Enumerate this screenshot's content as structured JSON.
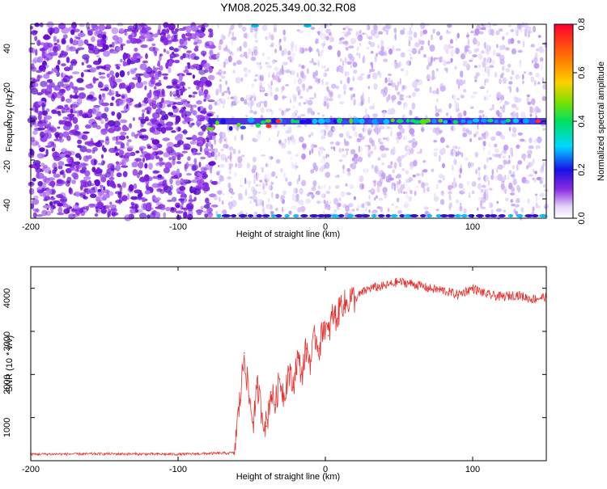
{
  "title": "YM08.2025.349.00.32.R08",
  "chart_data": [
    {
      "type": "heatmap",
      "xlabel": "Height of straight line (km)",
      "ylabel": "Frequency (Hz)",
      "xlim": [
        -200,
        150
      ],
      "ylim": [
        -50,
        50
      ],
      "x_ticks": [
        "-200",
        "-100",
        "0",
        "100"
      ],
      "y_ticks": [
        "40",
        "20",
        "0",
        "-20",
        "-40"
      ],
      "colorbar": {
        "label": "Normalized spectral amplitude",
        "range": [
          0.0,
          0.8
        ],
        "ticks": [
          "0.8",
          "0.6",
          "0.4",
          "0.2",
          "0.0"
        ]
      },
      "features": {
        "noise_transition_km": -75,
        "carrier_line_freq_hz": 0,
        "carrier_line_start_km": -75,
        "edge_band_freq_hz": -50
      }
    },
    {
      "type": "line",
      "xlabel": "Height of straight line (km)",
      "ylabel": "SNR (10 * v/v)",
      "xlim": [
        -200,
        150
      ],
      "ylim": [
        0,
        4500
      ],
      "x_ticks": [
        "-200",
        "-100",
        "0",
        "100"
      ],
      "y_ticks": [
        "4000",
        "3000",
        "2000",
        "1000"
      ],
      "series": [
        {
          "name": "SNR",
          "color": "#e8312e",
          "x": [
            -200,
            -150,
            -100,
            -62,
            -58,
            -55,
            -52,
            -49,
            -46,
            -43,
            -40,
            -37,
            -34,
            -31,
            -28,
            -25,
            -22,
            -19,
            -16,
            -13,
            -10,
            -7,
            -4,
            -1,
            2,
            5,
            8,
            11,
            14,
            17,
            20,
            25,
            30,
            40,
            50,
            60,
            70,
            80,
            90,
            100,
            110,
            120,
            130,
            140,
            150
          ],
          "values": [
            150,
            160,
            150,
            180,
            1400,
            2500,
            1500,
            900,
            1700,
            1100,
            800,
            1600,
            1300,
            1900,
            1500,
            2100,
            1700,
            2400,
            2000,
            2600,
            2300,
            2900,
            2600,
            3200,
            2900,
            3400,
            3300,
            3700,
            3600,
            3800,
            3750,
            3900,
            4000,
            4050,
            4150,
            4100,
            4000,
            3950,
            3850,
            4000,
            3850,
            3800,
            3850,
            3750,
            3800
          ]
        }
      ]
    }
  ]
}
